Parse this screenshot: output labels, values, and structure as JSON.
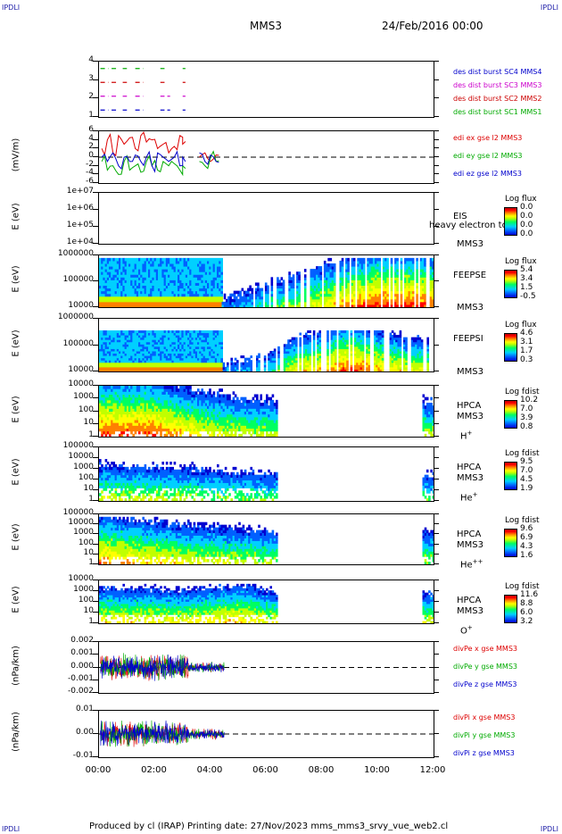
{
  "header": {
    "corner_label": "IPDLI",
    "spacecraft": "MMS3",
    "date": "24/Feb/2016 00:00",
    "footer": "Produced by cl (IRAP)   Printing date: 27/Nov/2023   mms_mms3_srvy_vue_web2.cl"
  },
  "x_axis": {
    "ticks": [
      "00:00",
      "02:00",
      "04:00",
      "06:00",
      "08:00",
      "10:00",
      "12:00"
    ],
    "range_hours": [
      0,
      12
    ]
  },
  "colorscale": [
    "#0000d0",
    "#0060ff",
    "#00d0ff",
    "#00ff60",
    "#c0ff00",
    "#ffff00",
    "#ff8000",
    "#ff0000",
    "#c00000"
  ],
  "chart_data": [
    {
      "type": "line",
      "panel": "burst",
      "yticks": [
        "4",
        "3",
        "2",
        "1"
      ],
      "ylim": [
        0.5,
        4.5
      ],
      "series": [
        {
          "name": "des dist burst SC1 MMS1",
          "color": "#00aa00",
          "y": 4,
          "segments": [
            [
              0.05,
              0.35
            ],
            [
              0.45,
              0.7
            ],
            [
              0.85,
              1.0
            ],
            [
              1.3,
              1.6
            ],
            [
              2.2,
              2.35
            ],
            [
              3.0,
              3.1
            ]
          ]
        },
        {
          "name": "des dist burst SC2 MMS2",
          "color": "#cc0000",
          "y": 3,
          "segments": [
            [
              0.05,
              0.35
            ],
            [
              0.45,
              0.7
            ],
            [
              0.85,
              1.0
            ],
            [
              1.3,
              1.6
            ],
            [
              2.2,
              2.35
            ],
            [
              3.0,
              3.1
            ]
          ]
        },
        {
          "name": "des dist burst SC3 MMS3",
          "color": "#cc00cc",
          "y": 2,
          "segments": [
            [
              0.05,
              0.35
            ],
            [
              0.45,
              0.7
            ],
            [
              0.85,
              1.0
            ],
            [
              1.3,
              1.6
            ],
            [
              2.2,
              2.35
            ],
            [
              2.45,
              2.55
            ],
            [
              3.0,
              3.1
            ]
          ]
        },
        {
          "name": "des dist burst SC4 MMS4",
          "color": "#0000cc",
          "y": 1,
          "segments": [
            [
              0.05,
              0.35
            ],
            [
              0.45,
              0.7
            ],
            [
              0.85,
              1.0
            ],
            [
              1.3,
              1.6
            ],
            [
              2.2,
              2.35
            ],
            [
              2.45,
              2.55
            ],
            [
              3.0,
              3.1
            ]
          ]
        }
      ],
      "legend_colors": [
        "#0000cc",
        "#cc00cc",
        "#cc0000",
        "#00aa00"
      ]
    },
    {
      "type": "line",
      "panel": "edi",
      "ylabel": "(mV/m)",
      "yticks": [
        "6",
        "4",
        "2",
        "0",
        "-2",
        "-4",
        "-6"
      ],
      "ylim": [
        -6,
        6
      ],
      "series": [
        {
          "name": "edi ex gse l2 MMS3",
          "color": "#dd0000",
          "t": [
            0.1,
            0.3,
            0.5,
            0.7,
            0.9,
            1.1,
            1.3,
            1.5,
            1.7,
            1.9,
            2.1,
            2.3,
            2.5,
            2.7,
            2.9,
            3.0,
            3.6,
            3.8,
            4.0,
            4.2
          ],
          "v": [
            2,
            4,
            1,
            5,
            3,
            4.5,
            2,
            5,
            3.5,
            4,
            2,
            3,
            1,
            2.5,
            5,
            3,
            0,
            1,
            -1,
            0.5
          ]
        },
        {
          "name": "edi ey gse l2 MMS3",
          "color": "#00aa00",
          "t": [
            0.1,
            0.3,
            0.5,
            0.7,
            0.9,
            1.1,
            1.3,
            1.5,
            1.7,
            1.9,
            2.1,
            2.3,
            2.5,
            2.7,
            2.9,
            3.0,
            3.6,
            3.8,
            4.0,
            4.2
          ],
          "v": [
            -1,
            -3,
            -2,
            -4,
            -1,
            -3,
            -2,
            -3.5,
            -1,
            -2,
            -3,
            -1,
            -2,
            -1.5,
            -3,
            -2,
            -1,
            -2,
            0,
            -1
          ]
        },
        {
          "name": "edi ez gse l2 MMS3",
          "color": "#0000cc",
          "t": [
            0.1,
            0.3,
            0.5,
            0.7,
            0.9,
            1.1,
            1.3,
            1.5,
            1.7,
            1.9,
            2.1,
            2.3,
            2.5,
            2.7,
            2.9,
            3.0,
            3.6,
            3.8,
            4.0,
            4.2
          ],
          "v": [
            0,
            -1,
            1,
            -2,
            0,
            -1,
            0.5,
            -1,
            0,
            -2,
            1,
            0,
            -1,
            0,
            -2,
            0,
            1,
            -1,
            0.5,
            -1
          ]
        }
      ]
    },
    {
      "type": "heatmap",
      "panel": "eis",
      "ylabel": "E (eV)",
      "yticks": [
        "1e+07",
        "1e+06",
        "1e+05",
        "1e+04"
      ],
      "instrument": "EIS",
      "spacecraft": "MMS3",
      "species": "heavy electron tof",
      "colorbar": {
        "title": "Log flux",
        "values": [
          "0.0",
          "0.0",
          "0.0",
          "0.0"
        ]
      },
      "coverage": [],
      "base": 0.0,
      "trend": [],
      "top_edge": 1.0,
      "stripes": false
    },
    {
      "type": "heatmap",
      "panel": "feepse",
      "ylabel": "E (eV)",
      "yticks": [
        "1000000",
        "100000",
        "10000"
      ],
      "instrument": "FEEPSE",
      "spacecraft": "MMS3",
      "colorbar": {
        "title": "Log flux",
        "values": [
          "5.4",
          "3.4",
          "1.5",
          "-0.5"
        ]
      },
      "coverage": [
        [
          0,
          4.4
        ],
        [
          4.4,
          12
        ]
      ],
      "base": 0.12,
      "trend": [
        [
          0,
          0.12
        ],
        [
          4.4,
          0.12
        ],
        [
          6,
          0.35
        ],
        [
          8,
          0.6
        ],
        [
          9,
          0.75
        ],
        [
          10,
          0.85
        ],
        [
          12,
          0.8
        ]
      ],
      "top_edge": 0.95,
      "stripes": true,
      "stripe_start": 4.4,
      "band": {
        "from": 0,
        "to": 4.4,
        "level": 0.75
      }
    },
    {
      "type": "heatmap",
      "panel": "feepsi",
      "ylabel": "E (eV)",
      "yticks": [
        "1000000",
        "100000",
        "10000"
      ],
      "instrument": "FEEPSI",
      "spacecraft": "MMS3",
      "colorbar": {
        "title": "Log flux",
        "values": [
          "4.6",
          "3.1",
          "1.7",
          "0.3"
        ]
      },
      "coverage": [
        [
          0,
          12
        ]
      ],
      "base": 0.1,
      "trend": [
        [
          0,
          0.1
        ],
        [
          4,
          0.1
        ],
        [
          6,
          0.3
        ],
        [
          7,
          0.6
        ],
        [
          8,
          0.7
        ],
        [
          9,
          0.85
        ],
        [
          10,
          0.7
        ],
        [
          11,
          0.6
        ],
        [
          12,
          0.55
        ]
      ],
      "top_edge": 0.78,
      "stripes": true,
      "stripe_start": 4.4,
      "band": {
        "from": 0,
        "to": 4.4,
        "level": 0.7
      }
    },
    {
      "type": "heatmap",
      "panel": "hpca_h",
      "ylabel": "E (eV)",
      "yticks": [
        "10000",
        "1000",
        "100",
        "10",
        "1"
      ],
      "instrument": "HPCA",
      "spacecraft": "MMS3",
      "species": "H",
      "species_sup": "+",
      "colorbar": {
        "title": "Log fdist",
        "values": [
          "10.2",
          "7.0",
          "3.9",
          "0.8"
        ]
      },
      "coverage": [
        [
          0,
          6.4
        ],
        [
          11.6,
          12
        ]
      ],
      "base": 0.85,
      "trend": [
        [
          0,
          0.85
        ],
        [
          2,
          0.82
        ],
        [
          3,
          0.7
        ],
        [
          4,
          0.6
        ],
        [
          5,
          0.55
        ],
        [
          6.4,
          0.5
        ]
      ],
      "top_edge": 1.0,
      "stripes": false
    },
    {
      "type": "heatmap",
      "panel": "hpca_he",
      "ylabel": "E (eV)",
      "yticks": [
        "100000",
        "10000",
        "1000",
        "100",
        "10",
        "1"
      ],
      "instrument": "HPCA",
      "spacecraft": "MMS3",
      "species": "He",
      "species_sup": "+",
      "colorbar": {
        "title": "Log fdist",
        "values": [
          "9.5",
          "7.0",
          "4.5",
          "1.9"
        ]
      },
      "coverage": [
        [
          0,
          6.4
        ],
        [
          11.6,
          12
        ]
      ],
      "base": 0.55,
      "trend": [
        [
          0,
          0.55
        ],
        [
          3,
          0.5
        ],
        [
          6.4,
          0.4
        ]
      ],
      "top_edge": 0.88,
      "stripes": false
    },
    {
      "type": "heatmap",
      "panel": "hpca_hepp",
      "ylabel": "E (eV)",
      "yticks": [
        "100000",
        "10000",
        "1000",
        "100",
        "10",
        "1"
      ],
      "instrument": "HPCA",
      "spacecraft": "MMS3",
      "species": "He",
      "species_sup": "++",
      "colorbar": {
        "title": "Log fdist",
        "values": [
          "9.6",
          "6.9",
          "4.3",
          "1.6"
        ]
      },
      "coverage": [
        [
          0,
          6.4
        ],
        [
          11.6,
          12
        ]
      ],
      "base": 0.75,
      "trend": [
        [
          0,
          0.75
        ],
        [
          3,
          0.6
        ],
        [
          6.4,
          0.5
        ]
      ],
      "top_edge": 0.95,
      "stripes": false
    },
    {
      "type": "heatmap",
      "panel": "hpca_o",
      "ylabel": "E (eV)",
      "yticks": [
        "10000",
        "1000",
        "100",
        "10",
        "1"
      ],
      "instrument": "HPCA",
      "spacecraft": "MMS3",
      "species": "O",
      "species_sup": "+",
      "colorbar": {
        "title": "Log fdist",
        "values": [
          "11.6",
          "8.8",
          "6.0",
          "3.2"
        ]
      },
      "coverage": [
        [
          0,
          6.4
        ],
        [
          11.6,
          12
        ]
      ],
      "base": 0.65,
      "trend": [
        [
          0,
          0.65
        ],
        [
          3,
          0.6
        ],
        [
          5,
          0.7
        ],
        [
          6.4,
          0.55
        ]
      ],
      "top_edge": 0.92,
      "stripes": false
    },
    {
      "type": "line",
      "panel": "divpe",
      "ylabel": "(nPa/km)",
      "yticks": [
        "0.002",
        "0.001",
        "0.000",
        "-0.001",
        "-0.002"
      ],
      "ylim": [
        -0.0025,
        0.0025
      ],
      "active_hours": [
        0,
        4.5
      ],
      "amplitude": 0.0012,
      "series": [
        {
          "name": "divPe x gse MMS3",
          "color": "#dd0000"
        },
        {
          "name": "divPe y gse MMS3",
          "color": "#00aa00"
        },
        {
          "name": "divPe z gse MMS3",
          "color": "#0000cc"
        }
      ]
    },
    {
      "type": "line",
      "panel": "divpi",
      "ylabel": "(nPa/km)",
      "yticks": [
        "0.01",
        "0.00",
        "-0.01"
      ],
      "ylim": [
        -0.015,
        0.015
      ],
      "active_hours": [
        0,
        4.5
      ],
      "amplitude": 0.008,
      "series": [
        {
          "name": "divPi x gse MMS3",
          "color": "#dd0000"
        },
        {
          "name": "divPi y gse MMS3",
          "color": "#00aa00"
        },
        {
          "name": "divPi z gse MMS3",
          "color": "#0000cc"
        }
      ]
    }
  ]
}
